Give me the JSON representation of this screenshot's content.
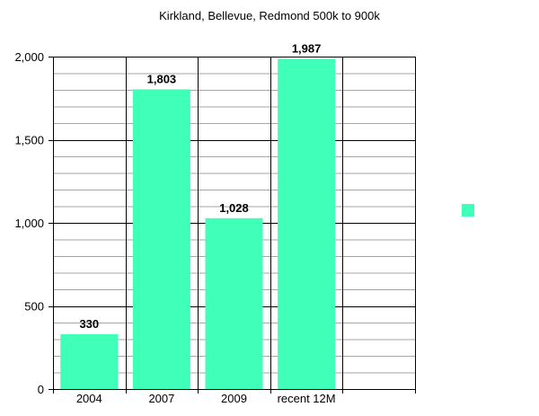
{
  "chart_data": {
    "type": "bar",
    "title": "Kirkland, Bellevue, Redmond 500k to 900k",
    "categories": [
      "2004",
      "2007",
      "2009",
      "recent 12M",
      ""
    ],
    "values": [
      330,
      1803,
      1028,
      1987,
      null
    ],
    "data_labels": [
      "330",
      "1,803",
      "1,028",
      "1,987",
      ""
    ],
    "ylim": [
      0,
      2000
    ],
    "yticks": [
      0,
      500,
      1000,
      1500,
      2000
    ],
    "ytick_labels": [
      "0",
      "500",
      "1,000",
      "1,500",
      "2,000"
    ],
    "minor_step": 100,
    "grid": true,
    "legend": "right",
    "bar_color": "#3fffb9",
    "axis_color": "#000000",
    "minor_grid_color": "#a6a6a6"
  }
}
